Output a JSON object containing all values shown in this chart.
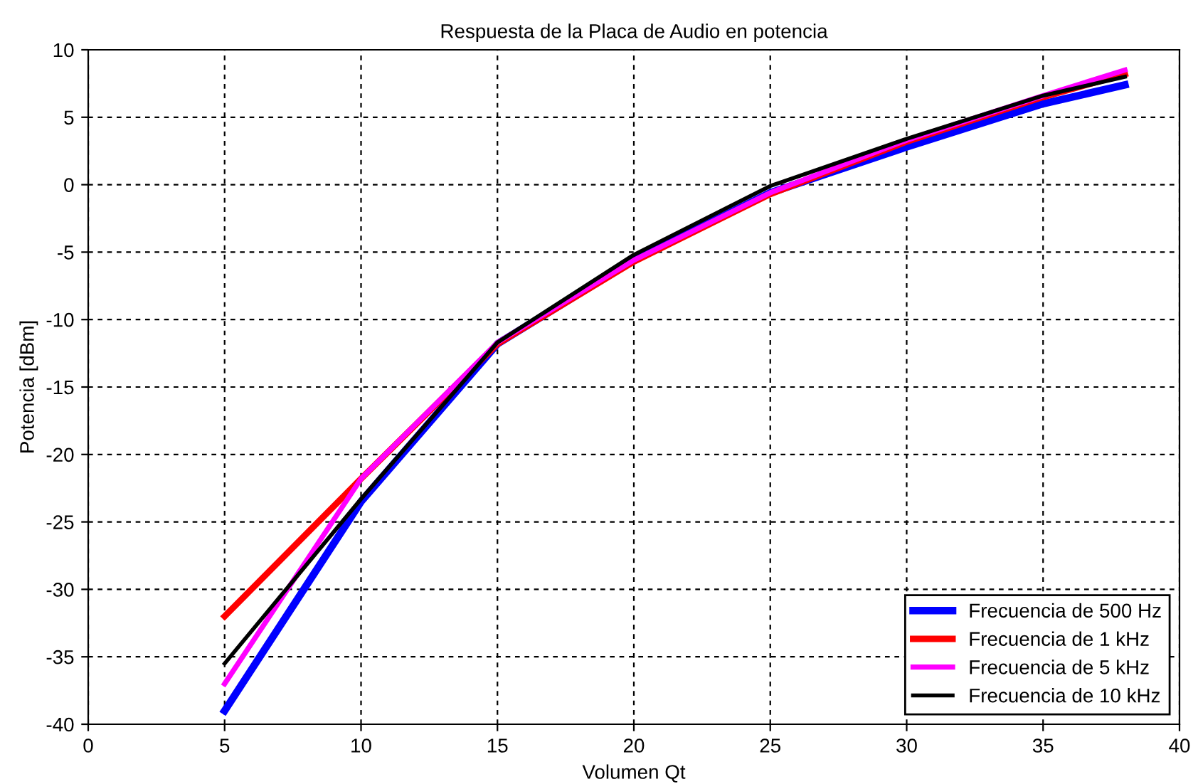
{
  "chart_data": {
    "type": "line",
    "title": "Respuesta de la Placa de Audio en potencia",
    "xlabel": "Volumen Qt",
    "ylabel": "Potencia [dBm]",
    "x": [
      5,
      10,
      15,
      20,
      25,
      30,
      35,
      38
    ],
    "series": [
      {
        "name": "Frecuencia de 500 Hz",
        "color": "#0000ff",
        "values": [
          -39,
          -23.5,
          -11.8,
          -5.6,
          -0.6,
          2.8,
          6.0,
          7.4
        ]
      },
      {
        "name": "Frecuencia de 1 kHz",
        "color": "#ff0000",
        "values": [
          -32,
          -21.8,
          -11.8,
          -5.7,
          -0.7,
          3.2,
          6.5,
          8.2
        ]
      },
      {
        "name": "Frecuencia de 5 kHz",
        "color": "#ff00ff",
        "values": [
          -37,
          -21.8,
          -11.7,
          -5.6,
          -0.6,
          3.3,
          6.6,
          8.5
        ]
      },
      {
        "name": "Frecuencia de 10 kHz",
        "color": "#000000",
        "values": [
          -35.5,
          -23.3,
          -11.7,
          -5.2,
          -0.1,
          3.4,
          6.6,
          8.0
        ]
      }
    ],
    "xlim": [
      0,
      40
    ],
    "ylim": [
      -40,
      10
    ],
    "xticks": [
      0,
      5,
      10,
      15,
      20,
      25,
      30,
      35,
      40
    ],
    "yticks": [
      -40,
      -35,
      -30,
      -25,
      -20,
      -15,
      -10,
      -5,
      0,
      5,
      10
    ],
    "grid": true,
    "legend": "bottom right"
  }
}
